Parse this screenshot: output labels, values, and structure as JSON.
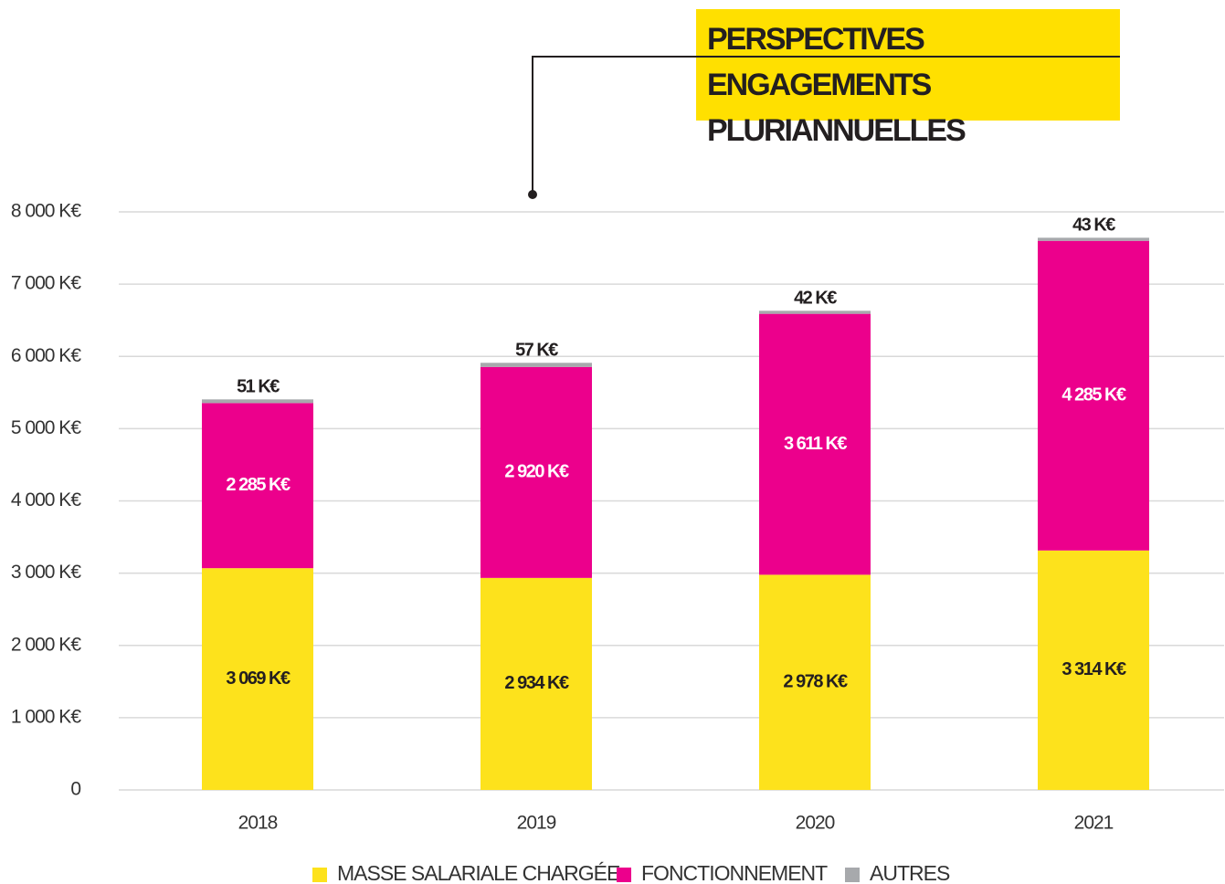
{
  "chart_data": {
    "type": "stacked_bar",
    "title": "PERSPECTIVES ENGAGEMENTS PLURIANNUELLES",
    "categories": [
      "2018",
      "2019",
      "2020",
      "2021"
    ],
    "series": [
      {
        "name": "MASSE SALARIALE CHARGÉE",
        "color": "#fde21c",
        "values": [
          3069,
          2934,
          2978,
          3314
        ],
        "value_labels": [
          "3 069 K€",
          "2 934 K€",
          "2 978 K€",
          "3 314 K€"
        ]
      },
      {
        "name": "FONCTIONNEMENT",
        "color": "#ec008c",
        "values": [
          2285,
          2920,
          3611,
          4285
        ],
        "value_labels": [
          "2 285 K€",
          "2 920 K€",
          "3 611 K€",
          "4 285 K€"
        ]
      },
      {
        "name": "AUTRES",
        "color": "#a7a9ac",
        "values": [
          51,
          57,
          42,
          43
        ],
        "value_labels": [
          "51 K€",
          "57 K€",
          "42 K€",
          "43 K€"
        ]
      }
    ],
    "ylim": [
      0,
      8000
    ],
    "yticks": [
      0,
      {
        "value": 1000,
        "label": "1 000 K€"
      },
      {
        "value": 2000,
        "label": "2 000 K€"
      },
      {
        "value": 3000,
        "label": "3 000 K€"
      },
      {
        "value": 4000,
        "label": "4 000 K€"
      },
      {
        "value": 5000,
        "label": "5 000 K€"
      },
      {
        "value": 6000,
        "label": "6 000 K€"
      },
      {
        "value": 7000,
        "label": "7 000 K€"
      },
      {
        "value": 8000,
        "label": "8 000 K€"
      }
    ],
    "grid": true,
    "legend": "bottom"
  }
}
